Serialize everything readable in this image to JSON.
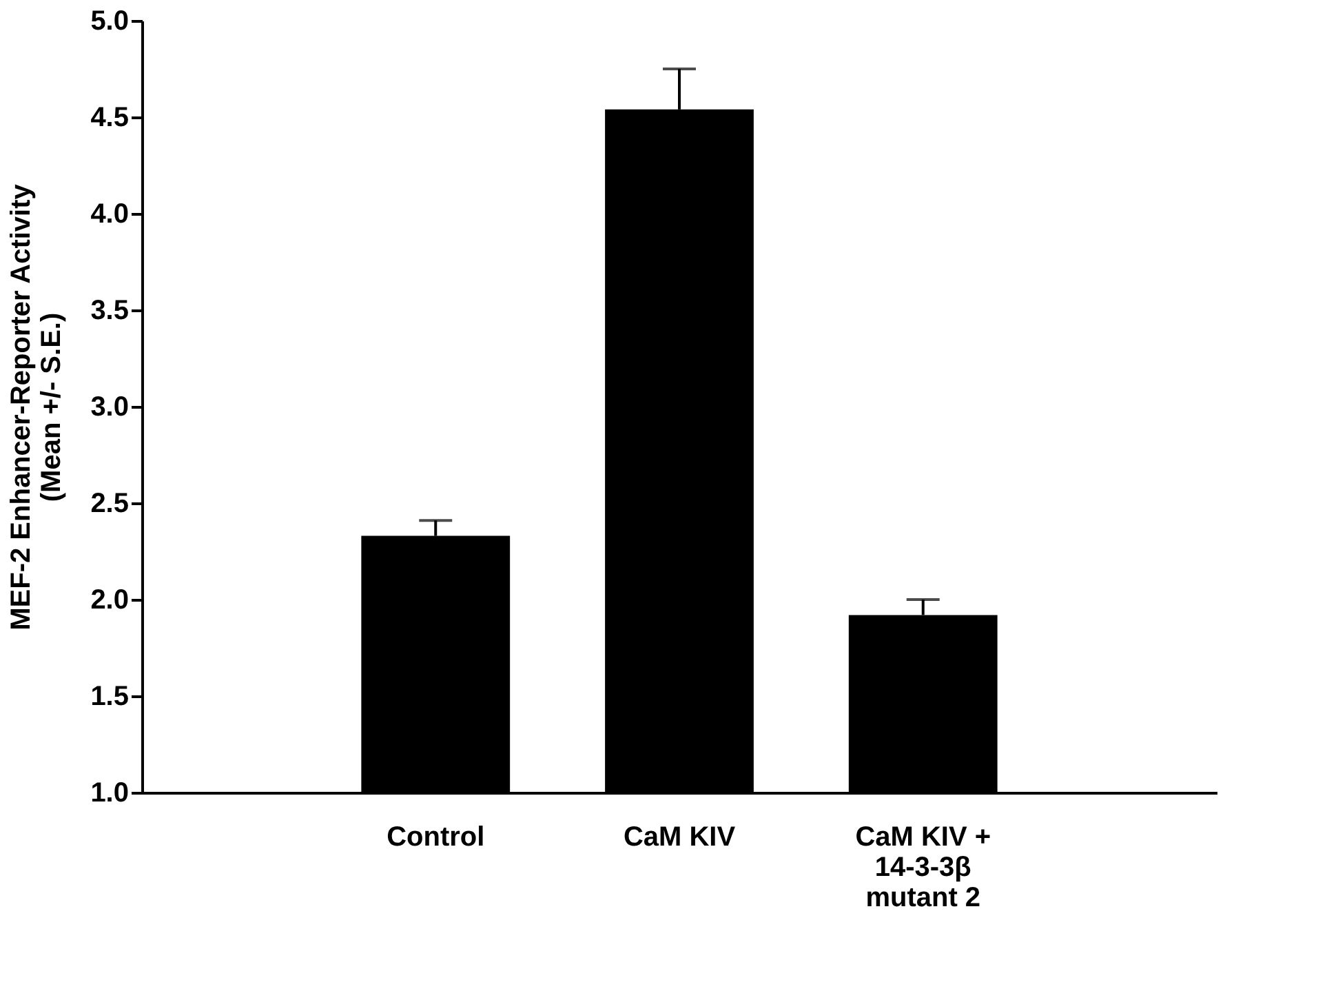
{
  "chart_data": {
    "type": "bar",
    "ylabel": "MEF-2 Enhancer-Reporter Activity\n(Mean +/- S.E.)",
    "categories": [
      "Control",
      "CaM KIV",
      "CaM KIV +\n14-3-3β\nmutant 2"
    ],
    "values": [
      2.33,
      4.54,
      1.92
    ],
    "color": "#000000",
    "errors": [
      [
        2.33,
        2.41
      ],
      [
        4.54,
        4.75
      ],
      [
        1.92,
        2.0
      ]
    ],
    "ylim": [
      1.0,
      5.0
    ],
    "yticks": [
      {
        "value": 1.0,
        "label": "1.0"
      },
      {
        "value": 1.5,
        "label": "1.5"
      },
      {
        "value": 2.0,
        "label": "2.0"
      },
      {
        "value": 2.5,
        "label": "2.5"
      },
      {
        "value": 3.0,
        "label": "3.0"
      },
      {
        "value": 3.5,
        "label": "3.5"
      },
      {
        "value": 4.0,
        "label": "4.0"
      },
      {
        "value": 4.5,
        "label": "4.5"
      },
      {
        "value": 5.0,
        "label": "5.0"
      }
    ],
    "grid": false
  }
}
